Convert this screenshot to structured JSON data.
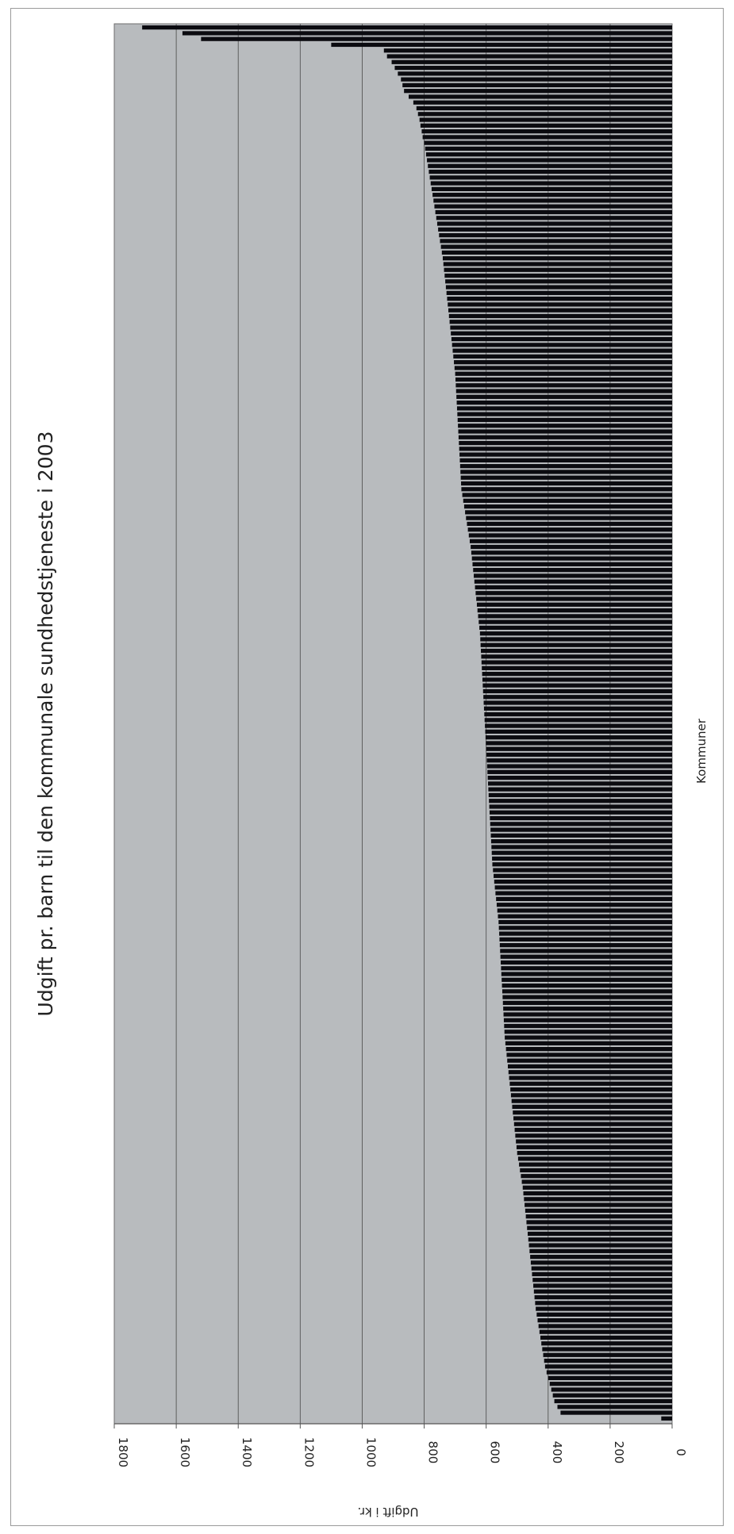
{
  "chart_data": {
    "type": "bar",
    "orientation": "horizontal",
    "rotation": "page rotated 90 degrees clockwise",
    "title": "Udgift pr. barn til den kommunale sundhedstjeneste i 2003",
    "xlabel": "Kommuner",
    "ylabel": "Udgift i kr.",
    "ylim": [
      0,
      1800
    ],
    "yticks": [
      "0",
      "200",
      "400",
      "600",
      "800",
      "1000",
      "1200",
      "1400",
      "1600",
      "1800"
    ],
    "grid": true,
    "legend": "none",
    "sorted": "descending",
    "values": [
      1710,
      1580,
      1520,
      1100,
      930,
      920,
      905,
      895,
      885,
      875,
      870,
      865,
      850,
      835,
      825,
      820,
      815,
      812,
      808,
      805,
      800,
      797,
      794,
      791,
      788,
      785,
      782,
      779,
      776,
      773,
      770,
      767,
      764,
      761,
      758,
      755,
      752,
      749,
      746,
      743,
      740,
      738,
      736,
      734,
      732,
      730,
      728,
      726,
      724,
      722,
      720,
      718,
      716,
      714,
      712,
      710,
      708,
      706,
      704,
      702,
      700,
      699,
      698,
      697,
      696,
      695,
      694,
      693,
      692,
      691,
      690,
      689,
      688,
      687,
      686,
      685,
      684,
      683,
      682,
      681,
      680,
      677,
      674,
      671,
      668,
      665,
      662,
      659,
      656,
      653,
      650,
      648,
      646,
      644,
      642,
      640,
      638,
      636,
      634,
      632,
      630,
      628,
      626,
      624,
      622,
      620,
      619,
      618,
      617,
      616,
      615,
      614,
      613,
      612,
      611,
      610,
      609,
      608,
      607,
      606,
      605,
      604,
      603,
      602,
      601,
      600,
      599,
      598,
      597,
      596,
      595,
      594,
      593,
      592,
      591,
      590,
      589,
      588,
      587,
      586,
      585,
      584,
      583,
      582,
      581,
      580,
      578,
      576,
      574,
      572,
      570,
      568,
      566,
      564,
      562,
      560,
      559,
      558,
      557,
      556,
      555,
      554,
      553,
      552,
      551,
      550,
      549,
      548,
      547,
      546,
      545,
      544,
      543,
      542,
      541,
      540,
      538,
      536,
      534,
      532,
      530,
      528,
      526,
      524,
      522,
      520,
      518,
      516,
      514,
      512,
      510,
      508,
      506,
      504,
      502,
      500,
      497,
      494,
      491,
      488,
      485,
      482,
      480,
      478,
      476,
      474,
      472,
      470,
      468,
      466,
      464,
      462,
      460,
      458,
      456,
      454,
      452,
      450,
      448,
      446,
      444,
      442,
      440,
      437,
      434,
      431,
      428,
      425,
      422,
      419,
      416,
      413,
      410,
      405,
      400,
      395,
      390,
      385,
      380,
      370,
      360,
      35
    ],
    "colors": {
      "bar": "#0b0b10",
      "plot_bg": "#b8bbbe",
      "grid": "#555555",
      "text": "#222222",
      "frame": "#9a9a9a"
    }
  }
}
